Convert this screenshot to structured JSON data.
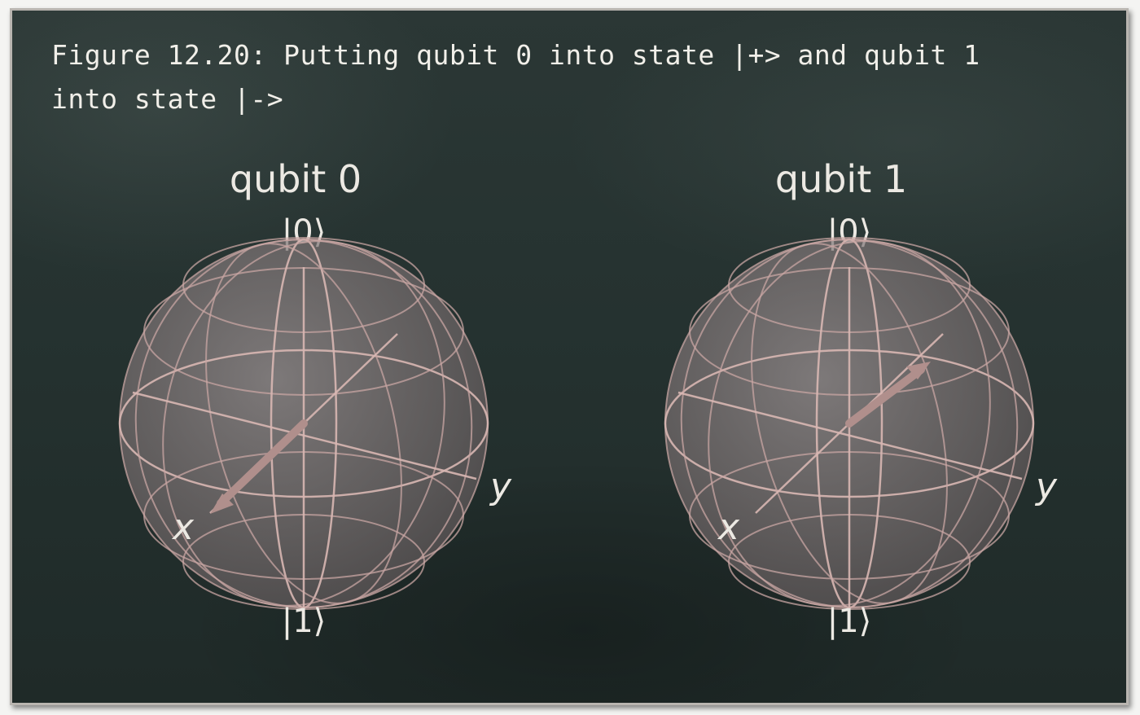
{
  "caption": "Figure 12.20: Putting qubit 0 into state |+> and qubit 1 into state |->",
  "spheres": [
    {
      "title": "qubit 0",
      "north_label": "|0⟩",
      "south_label": "|1⟩",
      "x_label": "x",
      "y_label": "y",
      "state": "|+>",
      "vector_color": "#b08f8c"
    },
    {
      "title": "qubit 1",
      "north_label": "|0⟩",
      "south_label": "|1⟩",
      "x_label": "x",
      "y_label": "y",
      "state": "|->",
      "vector_color": "#b08f8c"
    }
  ],
  "colors": {
    "board": "#253230",
    "sphere_fill": "#8a7f80",
    "grid": "#c8a6a3",
    "chalk": "#ece9e3"
  }
}
